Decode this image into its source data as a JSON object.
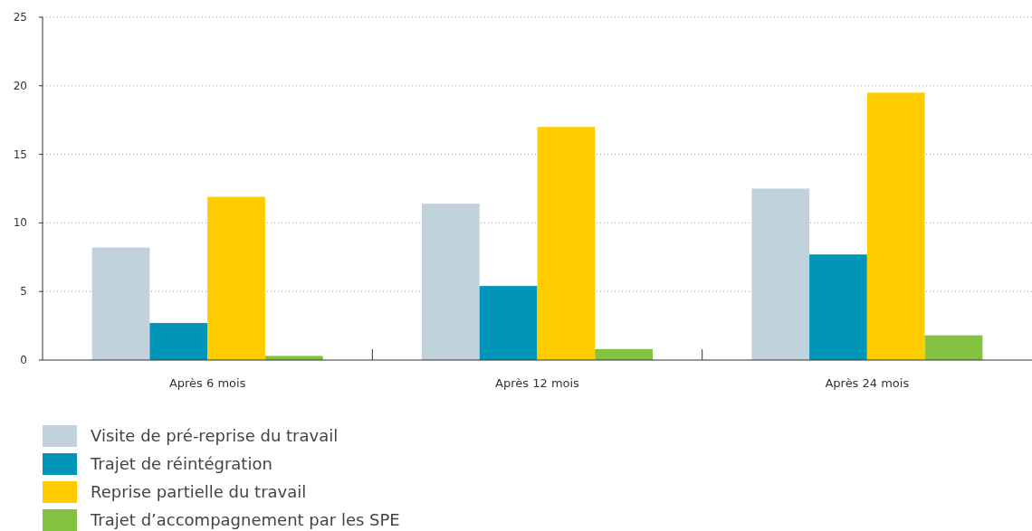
{
  "chart_data": {
    "type": "bar",
    "categories": [
      "Après 6 mois",
      "Après 12 mois",
      "Après 24 mois"
    ],
    "series": [
      {
        "name": "Visite de pré-reprise du travail",
        "color": "#c0d3dc",
        "values": [
          8.2,
          11.4,
          12.5
        ]
      },
      {
        "name": "Trajet de réintégration",
        "color": "#0095b9",
        "values": [
          2.7,
          5.4,
          7.7
        ]
      },
      {
        "name": "Reprise partielle du travail",
        "color": "#ffcc00",
        "values": [
          11.9,
          17.0,
          19.5
        ]
      },
      {
        "name": "Trajet d’accompagnement par les SPE",
        "color": "#84c241",
        "values": [
          0.3,
          0.8,
          1.8
        ]
      }
    ],
    "ylim": [
      0,
      25
    ],
    "yticks": [
      0,
      5,
      10,
      15,
      20,
      25
    ],
    "grid": "y",
    "legend": "bottom left"
  }
}
